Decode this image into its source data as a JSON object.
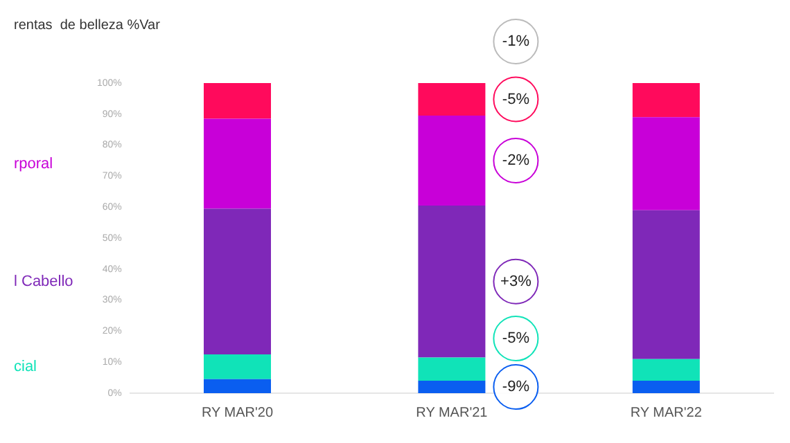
{
  "chart_data": {
    "type": "bar",
    "title": "rentas  de belleza %Var",
    "stacked": true,
    "categories": [
      "RY MAR'20",
      "RY MAR'21",
      "RY MAR'22"
    ],
    "series": [
      {
        "color": "#0a5ef0",
        "values": [
          4.5,
          4,
          4
        ]
      },
      {
        "name": "cial",
        "color": "#10e3b8",
        "values": [
          8,
          7.5,
          7
        ]
      },
      {
        "name": "l Cabello",
        "color": "#7f28b8",
        "values": [
          47,
          49,
          48
        ]
      },
      {
        "name": "rporal",
        "color": "#c800d8",
        "values": [
          29,
          29,
          30
        ]
      },
      {
        "color": "#ff0a5c",
        "values": [
          11.5,
          10.5,
          11
        ]
      }
    ],
    "ylim": [
      0,
      100
    ],
    "yticks": [
      {
        "value": 0,
        "label": "0%"
      },
      {
        "value": 10,
        "label": "10%"
      },
      {
        "value": 20,
        "label": "20%"
      },
      {
        "value": 30,
        "label": "30%"
      },
      {
        "value": 40,
        "label": "40%"
      },
      {
        "value": 50,
        "label": "50%"
      },
      {
        "value": 60,
        "label": "60%"
      },
      {
        "value": 70,
        "label": "70%"
      },
      {
        "value": 80,
        "label": "80%"
      },
      {
        "value": 90,
        "label": "90%"
      },
      {
        "value": 100,
        "label": "100%"
      }
    ],
    "grid": false,
    "legend": false,
    "annotations": [
      "-1%",
      "-5%",
      "-2%",
      "+3%",
      "-5%",
      "-9%"
    ]
  }
}
